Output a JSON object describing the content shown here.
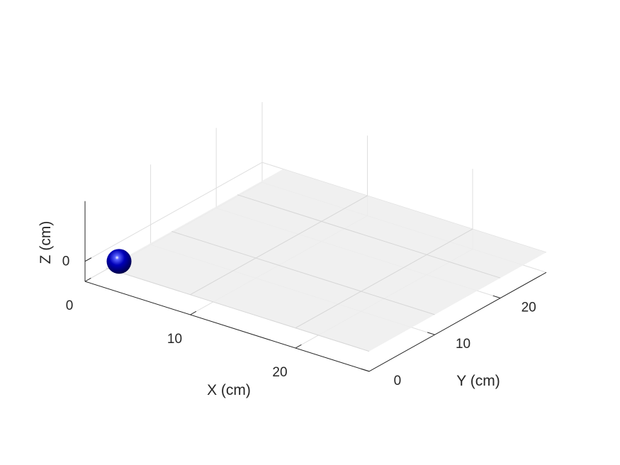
{
  "chart_data": {
    "type": "scatter",
    "title": "",
    "xlabel": "X (cm)",
    "ylabel": "Y (cm)",
    "zlabel": "Z (cm)",
    "xlim": [
      0,
      27
    ],
    "ylim": [
      0,
      27
    ],
    "zlim": [
      -1,
      3
    ],
    "x_ticks": [
      0,
      10,
      20
    ],
    "y_ticks": [
      0,
      10,
      20
    ],
    "z_ticks": [
      0
    ],
    "grid": true,
    "plane": {
      "z": 0,
      "xlim": [
        2,
        27
      ],
      "ylim": [
        0,
        27
      ],
      "color": "#eeeeee"
    },
    "points": [
      {
        "x": 0,
        "y": 0,
        "z": 0,
        "marker": "sphere",
        "color": "#0000b4"
      }
    ]
  }
}
